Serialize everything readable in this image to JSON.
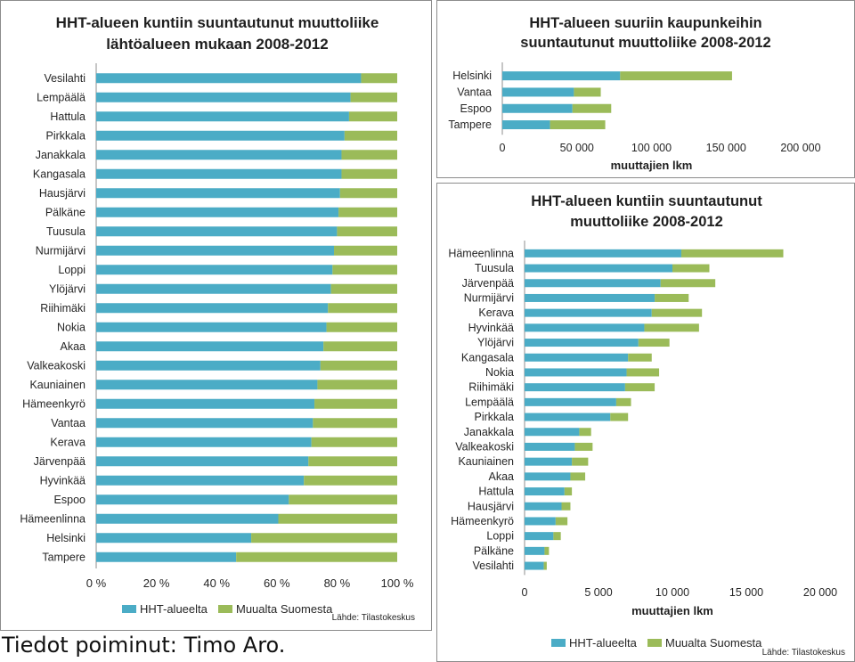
{
  "colors": {
    "hht": "#4BACC6",
    "muualta": "#9BBB59",
    "axis": "#8c8c8c"
  },
  "credit": "Tiedot poiminut: Timo Aro.",
  "chart_data": [
    {
      "id": "origin_share",
      "type": "bar",
      "stacked": "percent",
      "orientation": "horizontal",
      "title_lines": [
        "HHT-alueen kuntiin suuntautunut muuttoliike",
        "lähtöalueen mukaan 2008-2012"
      ],
      "categories": [
        "Vesilahti",
        "Lempäälä",
        "Hattula",
        "Pirkkala",
        "Janakkala",
        "Kangasala",
        "Hausjärvi",
        "Pälkäne",
        "Tuusula",
        "Nurmijärvi",
        "Loppi",
        "Ylöjärvi",
        "Riihimäki",
        "Nokia",
        "Akaa",
        "Valkeakoski",
        "Kauniainen",
        "Hämeenkyrö",
        "Vantaa",
        "Kerava",
        "Järvenpää",
        "Hyvinkää",
        "Espoo",
        "Hämeenlinna",
        "Helsinki",
        "Tampere"
      ],
      "series": [
        {
          "name": "HHT-alueelta",
          "values": [
            88,
            84.5,
            84,
            82.5,
            81.5,
            81.5,
            81,
            80.5,
            80,
            79,
            78.5,
            78,
            77,
            76.5,
            75.5,
            74.5,
            73.5,
            72.5,
            72,
            71.5,
            70.5,
            69,
            64,
            60.5,
            51.5,
            46.5
          ]
        },
        {
          "name": "Muualta Suomesta",
          "values": [
            12,
            15.5,
            16,
            17.5,
            18.5,
            18.5,
            19,
            19.5,
            20,
            21,
            21.5,
            22,
            23,
            23.5,
            24.5,
            25.5,
            26.5,
            27.5,
            28,
            28.5,
            29.5,
            31,
            36,
            39.5,
            48.5,
            53.5
          ]
        }
      ],
      "xlim": [
        0,
        100
      ],
      "xticks": [
        "0 %",
        "20 %",
        "40 %",
        "60 %",
        "80 %",
        "100 %"
      ],
      "source": "Lähde: Tilastokeskus"
    },
    {
      "id": "big_cities",
      "type": "bar",
      "stacked": "absolute",
      "orientation": "horizontal",
      "title_lines": [
        "HHT-alueen suuriin kaupunkeihin",
        "suuntautunut muuttoliike 2008-2012"
      ],
      "categories": [
        "Helsinki",
        "Vantaa",
        "Espoo",
        "Tampere"
      ],
      "series": [
        {
          "name": "HHT-alueelta",
          "values": [
            79000,
            48000,
            47000,
            32000
          ]
        },
        {
          "name": "Muualta Suomesta",
          "values": [
            75000,
            18000,
            26000,
            37000
          ]
        }
      ],
      "xlim": [
        0,
        200000
      ],
      "xticks": [
        "0",
        "50 000",
        "100 000",
        "150 000",
        "200 000"
      ],
      "xlabel": "muuttajien lkm"
    },
    {
      "id": "municipalities",
      "type": "bar",
      "stacked": "absolute",
      "orientation": "horizontal",
      "title_lines": [
        "HHT-alueen kuntiin suuntautunut",
        "muuttoliike 2008-2012"
      ],
      "categories": [
        "Hämeenlinna",
        "Tuusula",
        "Järvenpää",
        "Nurmijärvi",
        "Kerava",
        "Hyvinkää",
        "Ylöjärvi",
        "Kangasala",
        "Nokia",
        "Riihimäki",
        "Lempäälä",
        "Pirkkala",
        "Janakkala",
        "Valkeakoski",
        "Kauniainen",
        "Akaa",
        "Hattula",
        "Hausjärvi",
        "Hämeenkyrö",
        "Loppi",
        "Pälkäne",
        "Vesilahti"
      ],
      "series": [
        {
          "name": "HHT-alueelta",
          "values": [
            10600,
            10000,
            9200,
            8800,
            8600,
            8100,
            7700,
            7000,
            6900,
            6800,
            6200,
            5800,
            3700,
            3400,
            3200,
            3100,
            2700,
            2500,
            2100,
            1950,
            1350,
            1300
          ]
        },
        {
          "name": "Muualta Suomesta",
          "values": [
            6900,
            2500,
            3700,
            2300,
            3400,
            3700,
            2100,
            1600,
            2200,
            2000,
            1000,
            1200,
            800,
            1200,
            1100,
            1000,
            500,
            600,
            800,
            500,
            300,
            200
          ]
        }
      ],
      "xlim": [
        0,
        20000
      ],
      "xticks": [
        "0",
        "5 000",
        "10 000",
        "15 000",
        "20 000"
      ],
      "xlabel": "muuttajien lkm",
      "source": "Lähde: Tilastokeskus"
    }
  ]
}
